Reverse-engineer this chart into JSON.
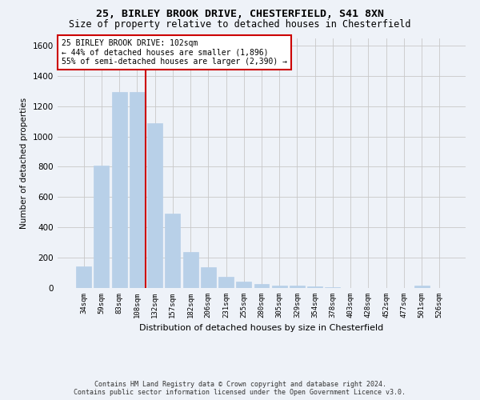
{
  "title_line1": "25, BIRLEY BROOK DRIVE, CHESTERFIELD, S41 8XN",
  "title_line2": "Size of property relative to detached houses in Chesterfield",
  "xlabel": "Distribution of detached houses by size in Chesterfield",
  "ylabel": "Number of detached properties",
  "categories": [
    "34sqm",
    "59sqm",
    "83sqm",
    "108sqm",
    "132sqm",
    "157sqm",
    "182sqm",
    "206sqm",
    "231sqm",
    "255sqm",
    "280sqm",
    "305sqm",
    "329sqm",
    "354sqm",
    "378sqm",
    "403sqm",
    "428sqm",
    "452sqm",
    "477sqm",
    "501sqm",
    "526sqm"
  ],
  "values": [
    140,
    810,
    1295,
    1295,
    1090,
    490,
    235,
    135,
    75,
    42,
    25,
    18,
    15,
    8,
    4,
    2,
    2,
    0,
    0,
    15,
    0
  ],
  "bar_color": "#b8d0e8",
  "bar_edgecolor": "#b8d0e8",
  "vline_x": 3.5,
  "vline_color": "#cc0000",
  "annotation_text": "25 BIRLEY BROOK DRIVE: 102sqm\n← 44% of detached houses are smaller (1,896)\n55% of semi-detached houses are larger (2,390) →",
  "annotation_box_color": "#ffffff",
  "annotation_box_edgecolor": "#cc0000",
  "ylim": [
    0,
    1650
  ],
  "yticks": [
    0,
    200,
    400,
    600,
    800,
    1000,
    1200,
    1400,
    1600
  ],
  "footer_line1": "Contains HM Land Registry data © Crown copyright and database right 2024.",
  "footer_line2": "Contains public sector information licensed under the Open Government Licence v3.0.",
  "bg_color": "#eef2f8",
  "plot_bg_color": "#eef2f8",
  "grid_color": "#c8c8c8"
}
